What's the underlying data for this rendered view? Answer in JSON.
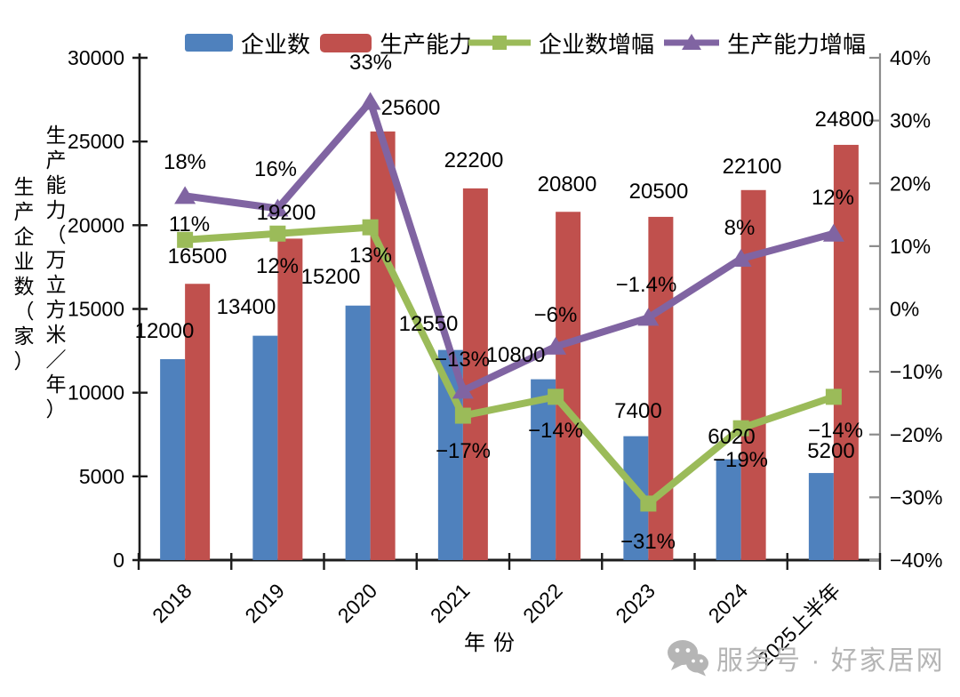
{
  "chart_data": {
    "type": "bar",
    "subtype": "combo-bar-line-dual-axis",
    "categories": [
      "2018",
      "2019",
      "2020",
      "2021",
      "2022",
      "2023",
      "2024",
      "2025上半年"
    ],
    "series": [
      {
        "name": "企业数",
        "type": "bar",
        "axis": "left",
        "color": "#4f81bd",
        "values": [
          12000,
          13400,
          15200,
          12550,
          10800,
          7400,
          6020,
          5200
        ],
        "value_labels": [
          "12000",
          "13400",
          "15200",
          "12550",
          "10800",
          "7400",
          "6020",
          "5200"
        ]
      },
      {
        "name": "生产能力",
        "type": "bar",
        "axis": "left",
        "color": "#c0504d",
        "values": [
          16500,
          19200,
          25600,
          22200,
          20800,
          20500,
          22100,
          24800
        ],
        "value_labels": [
          "16500",
          "19200",
          "25600",
          "22200",
          "20800",
          "20500",
          "22100",
          "24800"
        ]
      },
      {
        "name": "企业数增幅",
        "type": "line",
        "marker": "square",
        "axis": "right",
        "color": "#9bbb59",
        "values": [
          11,
          12,
          13,
          -17,
          -14,
          -31,
          -19,
          -14
        ],
        "value_labels": [
          "11%",
          "12%",
          "13%",
          "−17%",
          "−14%",
          "−31%",
          "−19%",
          "−14%"
        ]
      },
      {
        "name": "生产能力增幅",
        "type": "line",
        "marker": "triangle",
        "axis": "right",
        "color": "#8064a2",
        "values": [
          18,
          16,
          33,
          -13,
          -6,
          -1.4,
          8,
          12
        ],
        "value_labels": [
          "18%",
          "16%",
          "33%",
          "−13%",
          "−6%",
          "−1.4%",
          "8%",
          "12%"
        ]
      }
    ],
    "axes": {
      "left": {
        "title_primary": "生产企业数（家）",
        "title_secondary": "生产能力（万立方米／年）",
        "min": 0,
        "max": 30000,
        "step": 5000,
        "tick_labels": [
          "0",
          "5000",
          "10000",
          "15000",
          "20000",
          "25000",
          "30000"
        ]
      },
      "right": {
        "min": -40,
        "max": 40,
        "step": 10,
        "tick_labels": [
          "40%",
          "30%",
          "20%",
          "10%",
          "0%",
          "−10%",
          "−20%",
          "−30%",
          "−40%"
        ]
      },
      "x": {
        "title": "年份"
      }
    },
    "legend_position": "top",
    "grid": false
  },
  "legend": {
    "items": [
      {
        "label": "企业数",
        "swatch": "blue-bar-swatch"
      },
      {
        "label": "生产能力",
        "swatch": "red-bar-swatch"
      },
      {
        "label": "企业数增幅",
        "swatch": "green-line-square-marker"
      },
      {
        "label": "生产能力增幅",
        "swatch": "purple-line-triangle-marker"
      }
    ]
  },
  "watermark": {
    "icon": "wechat-chat-bubbles-icon",
    "text": "服务号 · 好家居网"
  },
  "colors": {
    "bar_blue": "#4f81bd",
    "bar_red": "#c0504d",
    "line_green": "#9bbb59",
    "line_purple": "#8064a2",
    "axis_black": "#1c1c1c",
    "axis_gray": "#8c8c8c",
    "label_black": "#000000",
    "watermark_gray": "#b5b5b5"
  }
}
